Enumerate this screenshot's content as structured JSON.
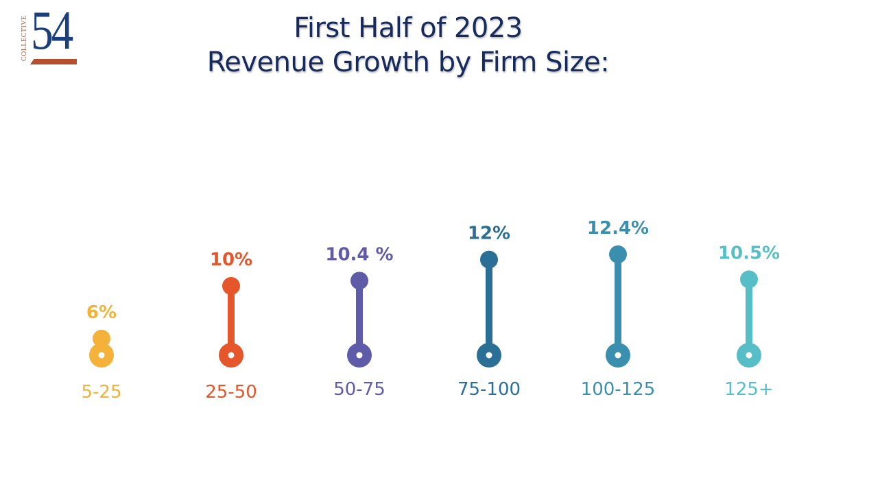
{
  "logo": {
    "vertical_text": "COLLECTIVE",
    "number": "54"
  },
  "chart_data": {
    "type": "lollipop",
    "title": "First Half of 2023",
    "subtitle": "Revenue Growth by Firm Size:",
    "categories": [
      "5-25",
      "25-50",
      "50-75",
      "75-100",
      "100-125",
      "125+"
    ],
    "values": [
      6,
      10,
      10.4,
      12,
      12.4,
      10.5
    ],
    "value_labels": [
      "6%",
      "10%",
      "10.4 %",
      "12%",
      "12.4%",
      "10.5%"
    ],
    "colors": [
      "#f4b23b",
      "#e5562b",
      "#5e5ba8",
      "#2b6f96",
      "#3b8fae",
      "#57bec8"
    ],
    "grid": false,
    "legend": "none"
  }
}
